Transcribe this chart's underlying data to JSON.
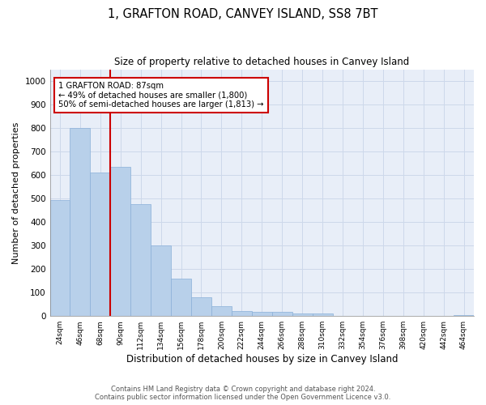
{
  "title": "1, GRAFTON ROAD, CANVEY ISLAND, SS8 7BT",
  "subtitle": "Size of property relative to detached houses in Canvey Island",
  "xlabel": "Distribution of detached houses by size in Canvey Island",
  "ylabel": "Number of detached properties",
  "footer_line1": "Contains HM Land Registry data © Crown copyright and database right 2024.",
  "footer_line2": "Contains public sector information licensed under the Open Government Licence v3.0.",
  "bin_labels": [
    "24sqm",
    "46sqm",
    "68sqm",
    "90sqm",
    "112sqm",
    "134sqm",
    "156sqm",
    "178sqm",
    "200sqm",
    "222sqm",
    "244sqm",
    "266sqm",
    "288sqm",
    "310sqm",
    "332sqm",
    "354sqm",
    "376sqm",
    "398sqm",
    "420sqm",
    "442sqm",
    "464sqm"
  ],
  "bar_values": [
    495,
    800,
    610,
    635,
    475,
    300,
    158,
    80,
    43,
    22,
    18,
    18,
    10,
    10,
    0,
    0,
    0,
    0,
    0,
    0,
    5
  ],
  "bar_color": "#b8d0ea",
  "bar_edge_color": "#8ab0d8",
  "grid_color": "#cdd8ea",
  "background_color": "#e8eef8",
  "red_line_color": "#cc0000",
  "red_line_bin_index": 2.5,
  "annotation_text": "1 GRAFTON ROAD: 87sqm\n← 49% of detached houses are smaller (1,800)\n50% of semi-detached houses are larger (1,813) →",
  "annotation_box_color": "#ffffff",
  "annotation_box_edge": "#cc0000",
  "ylim": [
    0,
    1050
  ],
  "yticks": [
    0,
    100,
    200,
    300,
    400,
    500,
    600,
    700,
    800,
    900,
    1000
  ]
}
